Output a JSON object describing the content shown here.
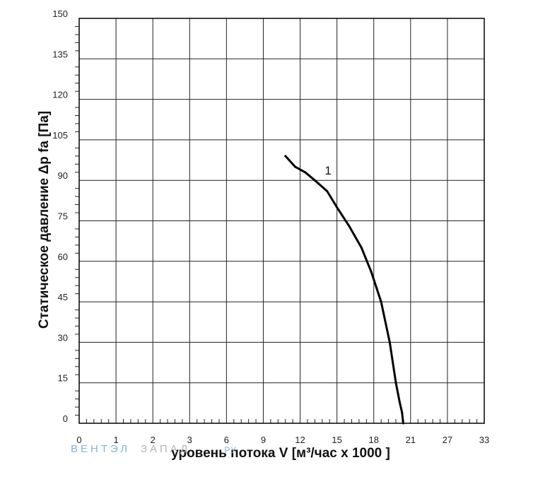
{
  "chart_data": {
    "type": "line",
    "xlabel": "уровень потока  V [м³/час x 1000 ]",
    "ylabel": "Статическое давление  Δp fa [Па]",
    "xlim": [
      0,
      33
    ],
    "ylim": [
      0,
      150
    ],
    "x_ticks": [
      "0",
      "1",
      "2",
      "3",
      "6",
      "9",
      "12",
      "15",
      "18",
      "21",
      "27",
      "33"
    ],
    "y_ticks": [
      "0",
      "15",
      "30",
      "45",
      "60",
      "75",
      "90",
      "105",
      "120",
      "135",
      "150"
    ],
    "grid": true,
    "series": [
      {
        "name": "1",
        "x": [
          10.8,
          11.6,
          12.4,
          13.2,
          14.2,
          15.0,
          16.0,
          17.0,
          17.8,
          18.6,
          19.3,
          19.8,
          20.1,
          20.3,
          20.4
        ],
        "y": [
          99,
          95,
          93,
          90,
          86,
          80,
          73,
          65,
          56,
          45,
          30,
          15,
          8,
          4,
          0
        ]
      }
    ],
    "watermark": [
      "ВЕНТЭЛ",
      "ЗАПАД",
      ".РУ"
    ]
  }
}
